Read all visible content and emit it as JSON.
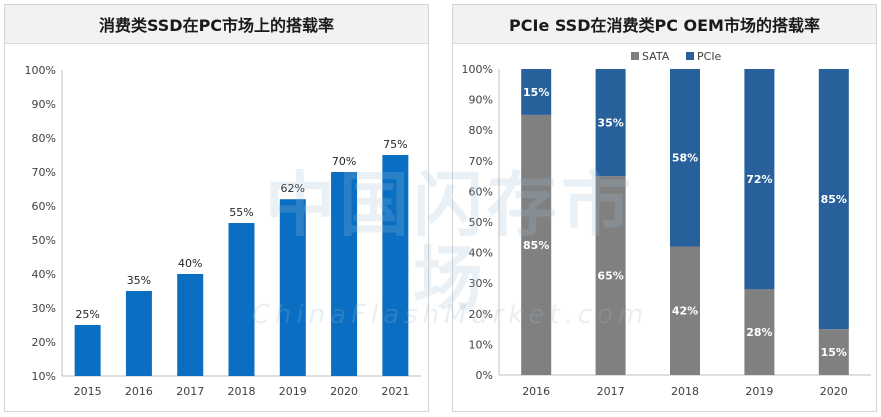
{
  "colors": {
    "blue": "#0a6fc2",
    "gray": "#808080",
    "dark_blue": "#27609a"
  },
  "watermark": {
    "cn": "中国闪存市场",
    "en": "ChinaFlashMarket.com"
  },
  "chart_data": [
    {
      "type": "bar",
      "title": "消费类SSD在PC市场上的搭载率",
      "categories": [
        "2015",
        "2016",
        "2017",
        "2018",
        "2019",
        "2020",
        "2021"
      ],
      "values": [
        25,
        35,
        40,
        55,
        62,
        70,
        75
      ],
      "value_labels": [
        "25%",
        "35%",
        "40%",
        "55%",
        "62%",
        "70%",
        "75%"
      ],
      "ylim": [
        10,
        100
      ],
      "yticks": [
        "10%",
        "20%",
        "30%",
        "40%",
        "50%",
        "60%",
        "70%",
        "80%",
        "90%",
        "100%"
      ],
      "xlabel": "",
      "ylabel": "",
      "grid": false,
      "color": "#0a6fc2"
    },
    {
      "type": "bar",
      "stacked": true,
      "title": "PCIe SSD在消费类PC OEM市场的搭载率",
      "categories": [
        "2016",
        "2017",
        "2018",
        "2019",
        "2020"
      ],
      "series": [
        {
          "name": "SATA",
          "values": [
            85,
            65,
            42,
            28,
            15
          ],
          "labels": [
            "85%",
            "65%",
            "42%",
            "28%",
            "15%"
          ],
          "color": "#808080"
        },
        {
          "name": "PCIe",
          "values": [
            15,
            35,
            58,
            72,
            85
          ],
          "labels": [
            "15%",
            "35%",
            "58%",
            "72%",
            "85%"
          ],
          "color": "#27609a"
        }
      ],
      "ylim": [
        0,
        100
      ],
      "yticks": [
        "0%",
        "10%",
        "20%",
        "30%",
        "40%",
        "50%",
        "60%",
        "70%",
        "80%",
        "90%",
        "100%"
      ],
      "legend": "top",
      "xlabel": "",
      "ylabel": "",
      "grid": false
    }
  ]
}
